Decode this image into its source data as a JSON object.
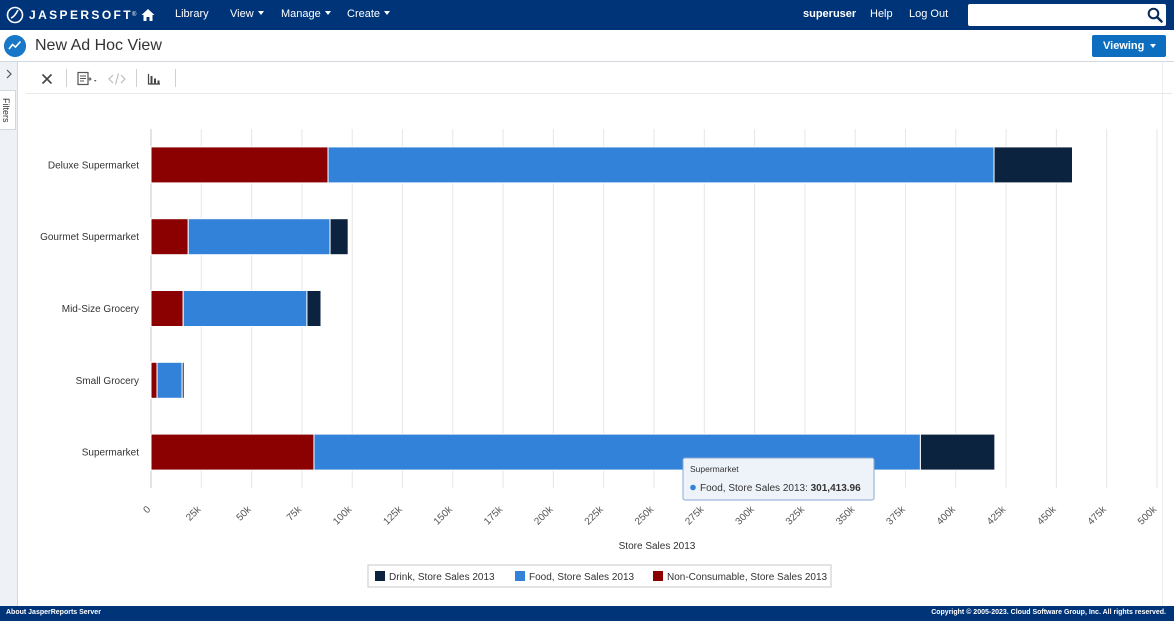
{
  "brand": {
    "name": "JASPERSOFT",
    "tm": "®"
  },
  "nav": {
    "library": "Library",
    "view": "View",
    "manage": "Manage",
    "create": "Create",
    "user": "superuser",
    "help": "Help",
    "logout": "Log Out"
  },
  "search": {
    "value": "",
    "placeholder": ""
  },
  "header": {
    "title": "New Ad Hoc View",
    "mode_button": "Viewing"
  },
  "sidebar": {
    "filters_label": "Filters"
  },
  "toolbar": {
    "icons": [
      "close-icon",
      "export-icon",
      "code-icon",
      "chart-type-icon"
    ]
  },
  "chart_data": {
    "type": "bar",
    "orientation": "horizontal",
    "stacked": true,
    "categories": [
      "Deluxe Supermarket",
      "Gourmet Supermarket",
      "Mid-Size Grocery",
      "Small Grocery",
      "Supermarket"
    ],
    "series": [
      {
        "name": "Non-Consumable, Store Sales 2013",
        "color": "#8b0000",
        "values": [
          88000,
          18500,
          16000,
          3000,
          81000
        ]
      },
      {
        "name": "Food, Store Sales 2013",
        "color": "#3382d9",
        "values": [
          331000,
          70500,
          61500,
          12500,
          301413.96
        ]
      },
      {
        "name": "Drink, Store Sales 2013",
        "color": "#0c2340",
        "values": [
          39000,
          9000,
          7000,
          1000,
          37000
        ]
      }
    ],
    "legend_order": [
      "Drink, Store Sales 2013",
      "Food, Store Sales 2013",
      "Non-Consumable, Store Sales 2013"
    ],
    "xlabel": "Store Sales 2013",
    "xlim": [
      0,
      500000
    ],
    "xticks": [
      "0",
      "25k",
      "50k",
      "75k",
      "100k",
      "125k",
      "150k",
      "175k",
      "200k",
      "225k",
      "250k",
      "275k",
      "300k",
      "325k",
      "350k",
      "375k",
      "400k",
      "425k",
      "450k",
      "475k",
      "500k"
    ],
    "grid": true,
    "legend_position": "bottom",
    "tooltip": {
      "title": "Supermarket",
      "text": "Food, Store Sales 2013: ",
      "value": "301,413.96",
      "color": "#3382d9"
    }
  },
  "footer": {
    "left": "About JasperReports Server",
    "right": "Copyright © 2005-2023. Cloud Software Group, Inc. All rights reserved."
  }
}
